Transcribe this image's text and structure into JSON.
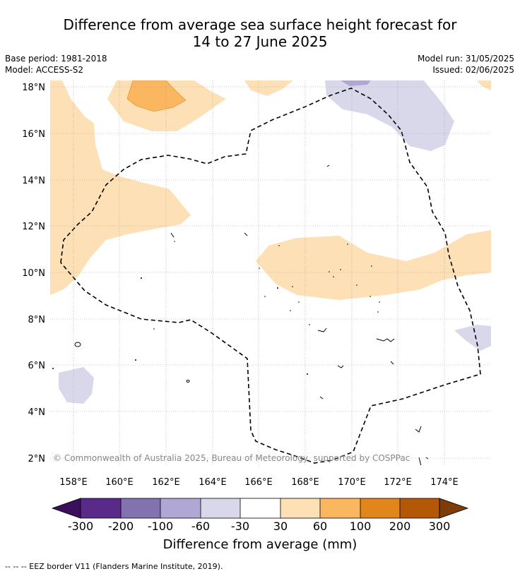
{
  "title": {
    "line1": "Difference from average sea surface height forecast for",
    "line2": "14 to 27 June 2025"
  },
  "meta": {
    "base_period": "Base period: 1981-2018",
    "model": "Model: ACCESS-S2",
    "model_run": "Model run: 31/05/2025",
    "issued": "Issued: 02/06/2025"
  },
  "map": {
    "lat_labels": [
      "18°N",
      "16°N",
      "14°N",
      "12°N",
      "10°N",
      "8°N",
      "6°N",
      "4°N",
      "2°N"
    ],
    "lon_labels": [
      "158°E",
      "160°E",
      "162°E",
      "164°E",
      "166°E",
      "168°E",
      "170°E",
      "172°E",
      "174°E"
    ],
    "copyright": "© Commonwealth of Australia 2025, Bureau of Meteorology, supported by COSPPac"
  },
  "colorbar": {
    "tick_labels": [
      "-300",
      "-200",
      "-100",
      "-60",
      "-30",
      "30",
      "60",
      "100",
      "200",
      "300"
    ],
    "title": "Difference from average (mm)",
    "colors": [
      "#3b0f5c",
      "#5a2a8a",
      "#8272b0",
      "#b0a8d2",
      "#d8d8ea",
      "#ffffff",
      "#fde0b5",
      "#fbb660",
      "#e1861b",
      "#b35806",
      "#7f3b08"
    ]
  },
  "footer": {
    "legend_text": "--  --  -- EEZ border V11 (Flanders Marine Institute, 2019)."
  }
}
